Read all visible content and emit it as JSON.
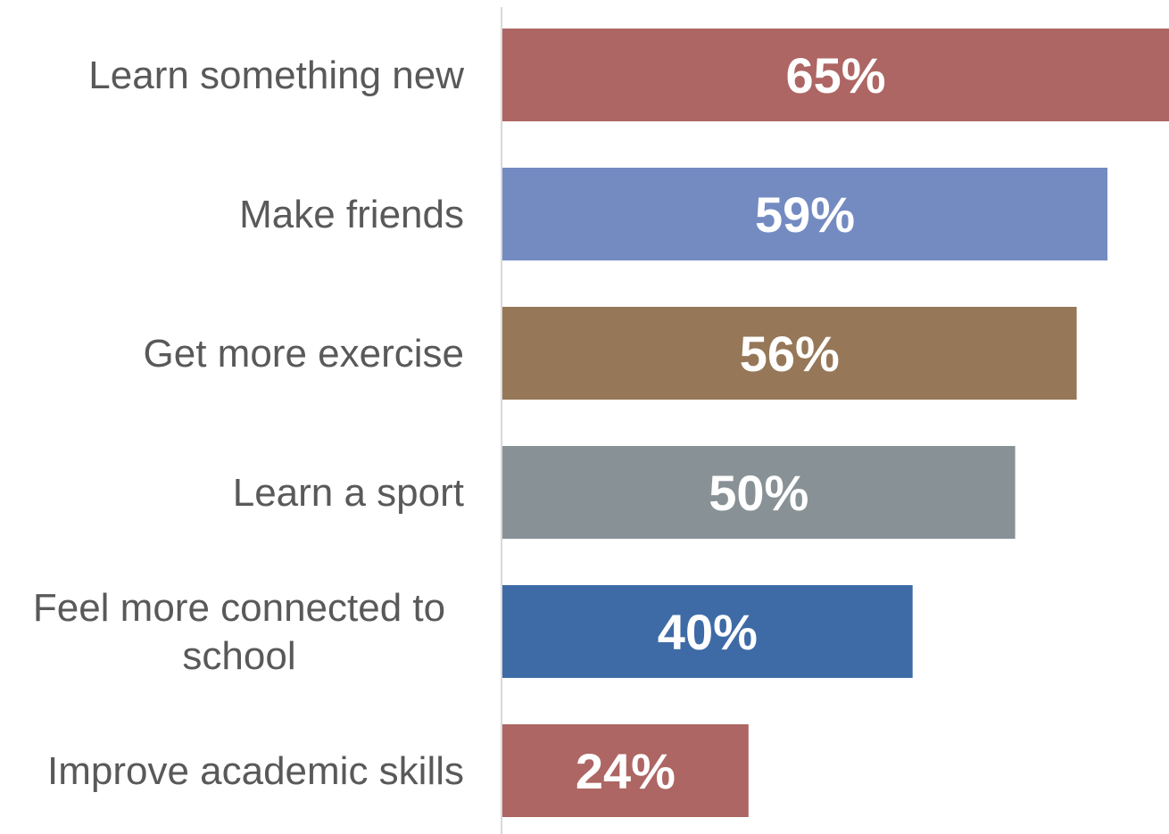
{
  "chart_data": {
    "type": "bar",
    "orientation": "horizontal",
    "title": "",
    "xlabel": "",
    "ylabel": "",
    "categories": [
      "Learn something new",
      "Make friends",
      "Get more exercise",
      "Learn a sport",
      "Feel more connected to school",
      "Improve academic skills"
    ],
    "values": [
      65,
      59,
      56,
      50,
      40,
      24
    ],
    "value_labels": [
      "65%",
      "59%",
      "56%",
      "50%",
      "40%",
      "24%"
    ],
    "xlim": [
      0,
      65
    ],
    "grid": false,
    "legend": "none",
    "bar_colors": [
      "#ad6663",
      "#748bc2",
      "#967758",
      "#889296",
      "#3e6ba6",
      "#ad6663"
    ],
    "category_label_color": "#595959",
    "value_label_color": "#ffffff",
    "axis_line_color": "#d9d9d9"
  }
}
